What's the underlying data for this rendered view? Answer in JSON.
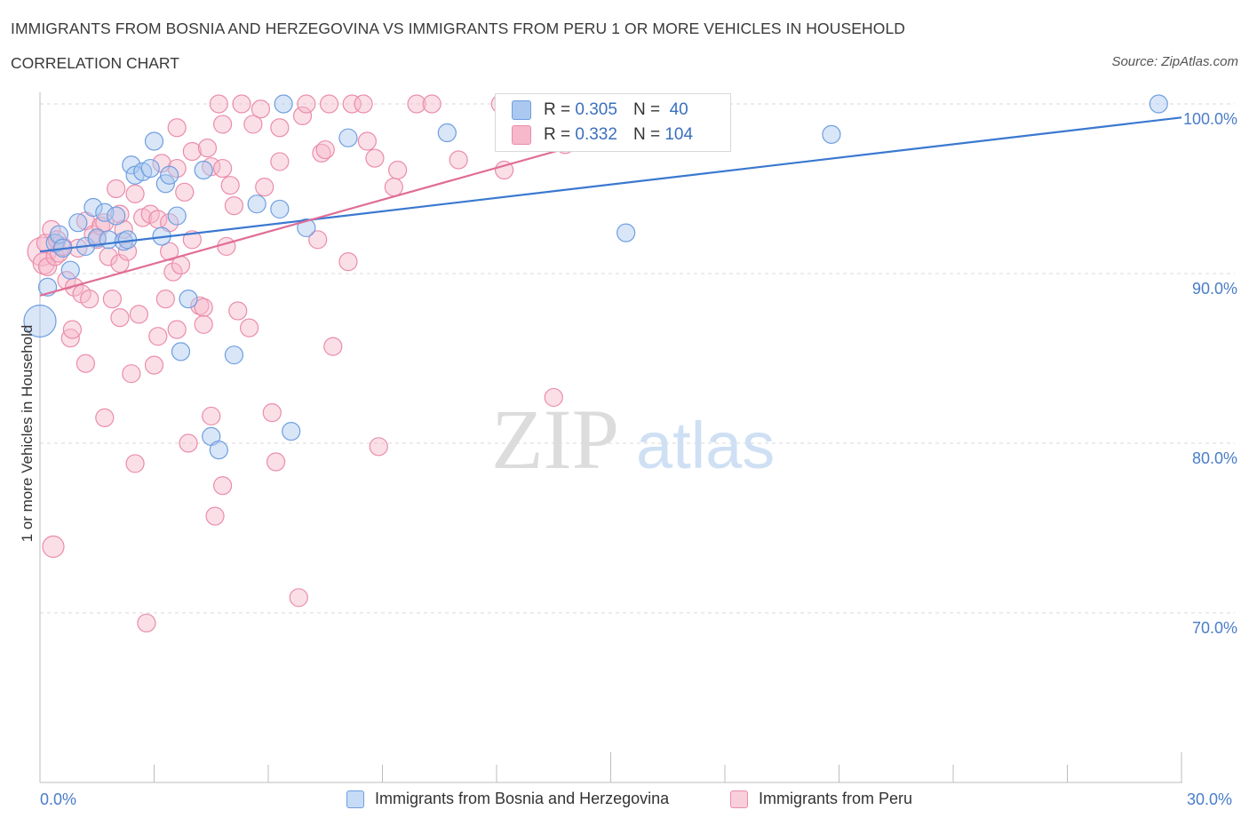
{
  "title": "IMMIGRANTS FROM BOSNIA AND HERZEGOVINA VS IMMIGRANTS FROM PERU 1 OR MORE VEHICLES IN HOUSEHOLD",
  "subtitle": "CORRELATION CHART",
  "source": "Source: ZipAtlas.com",
  "watermark": {
    "zip": "ZIP",
    "atlas": "atlas"
  },
  "colors": {
    "blue_fill": "#aac8f0",
    "blue_stroke": "#6d9ee0",
    "blue_line": "#3a78d0",
    "pink_fill": "#f6b8ca",
    "pink_stroke": "#ea8cab",
    "pink_line": "#e06d96",
    "axis_text": "#4a7dc9",
    "grid": "#d9d9d9"
  },
  "legend_top": [
    {
      "r_label": "R =",
      "r_value": "0.305",
      "n_label": "N =",
      "n_value": "40"
    },
    {
      "r_label": "R =",
      "r_value": "0.332",
      "n_label": "N =",
      "n_value": "104"
    }
  ],
  "legend_bottom": [
    {
      "label": "Immigrants from Bosnia and Herzegovina"
    },
    {
      "label": "Immigrants from Peru"
    }
  ],
  "chart_data": {
    "type": "scatter",
    "ylabel": "1 or more Vehicles in Household",
    "xlim": [
      0,
      30
    ],
    "ylim": [
      60,
      100
    ],
    "x_tick_labels": [
      "0.0%",
      "30.0%"
    ],
    "y_ticks": [
      {
        "value": 100,
        "label": "100.0%"
      },
      {
        "value": 90,
        "label": "90.0%"
      },
      {
        "value": 80,
        "label": "80.0%"
      },
      {
        "value": 70,
        "label": "70.0%"
      }
    ],
    "grid": true,
    "legend_position": "top-center",
    "series": [
      {
        "name": "Immigrants from Bosnia and Herzegovina",
        "color": "blue",
        "trend": {
          "x": [
            0,
            30
          ],
          "y": [
            91.3,
            99.2
          ]
        },
        "points": [
          [
            0.0,
            87.2,
            18
          ],
          [
            0.2,
            89.2,
            10
          ],
          [
            0.4,
            91.8,
            10
          ],
          [
            0.5,
            92.3,
            10
          ],
          [
            0.6,
            91.5,
            10
          ],
          [
            0.8,
            90.2,
            10
          ],
          [
            1.0,
            93.0,
            10
          ],
          [
            1.2,
            91.6,
            10
          ],
          [
            1.4,
            93.9,
            10
          ],
          [
            1.5,
            92.1,
            10
          ],
          [
            1.7,
            93.6,
            10
          ],
          [
            1.8,
            92.0,
            10
          ],
          [
            2.0,
            93.4,
            10
          ],
          [
            2.2,
            91.9,
            10
          ],
          [
            2.3,
            92.0,
            10
          ],
          [
            2.4,
            96.4,
            10
          ],
          [
            2.5,
            95.8,
            10
          ],
          [
            2.7,
            96.0,
            10
          ],
          [
            2.9,
            96.2,
            10
          ],
          [
            3.0,
            97.8,
            10
          ],
          [
            3.2,
            92.2,
            10
          ],
          [
            3.3,
            95.3,
            10
          ],
          [
            3.4,
            95.8,
            10
          ],
          [
            3.6,
            93.4,
            10
          ],
          [
            3.7,
            85.4,
            10
          ],
          [
            3.9,
            88.5,
            10
          ],
          [
            4.3,
            96.1,
            10
          ],
          [
            4.5,
            80.4,
            10
          ],
          [
            4.7,
            79.6,
            10
          ],
          [
            5.1,
            85.2,
            10
          ],
          [
            5.7,
            94.1,
            10
          ],
          [
            6.3,
            93.8,
            10
          ],
          [
            6.4,
            100.0,
            10
          ],
          [
            6.6,
            80.7,
            10
          ],
          [
            7.0,
            92.7,
            10
          ],
          [
            8.1,
            98.0,
            10
          ],
          [
            10.7,
            98.3,
            10
          ],
          [
            15.4,
            92.4,
            10
          ],
          [
            20.8,
            98.2,
            10
          ],
          [
            29.4,
            100.0,
            10
          ]
        ]
      },
      {
        "name": "Immigrants from Peru",
        "color": "pink",
        "trend": {
          "x": [
            0,
            18
          ],
          "y": [
            88.7,
            100.0
          ]
        },
        "points": [
          [
            0.05,
            91.3,
            16
          ],
          [
            0.1,
            90.6,
            12
          ],
          [
            0.15,
            91.8,
            10
          ],
          [
            0.2,
            90.4,
            10
          ],
          [
            0.3,
            92.6,
            10
          ],
          [
            0.35,
            73.9,
            12
          ],
          [
            0.4,
            91.0,
            10
          ],
          [
            0.45,
            92.0,
            10
          ],
          [
            0.5,
            91.2,
            10
          ],
          [
            0.6,
            91.6,
            10
          ],
          [
            0.7,
            89.6,
            10
          ],
          [
            0.8,
            86.2,
            10
          ],
          [
            0.85,
            86.7,
            10
          ],
          [
            0.9,
            89.2,
            10
          ],
          [
            1.0,
            91.5,
            10
          ],
          [
            1.1,
            88.8,
            10
          ],
          [
            1.2,
            93.1,
            10
          ],
          [
            1.2,
            84.7,
            10
          ],
          [
            1.3,
            88.5,
            10
          ],
          [
            1.4,
            92.3,
            10
          ],
          [
            1.5,
            92.0,
            10
          ],
          [
            1.6,
            92.8,
            10
          ],
          [
            1.7,
            93.0,
            10
          ],
          [
            1.7,
            81.5,
            10
          ],
          [
            1.8,
            91.0,
            10
          ],
          [
            1.9,
            88.5,
            10
          ],
          [
            2.0,
            95.0,
            10
          ],
          [
            2.1,
            93.5,
            10
          ],
          [
            2.1,
            90.6,
            10
          ],
          [
            2.1,
            87.4,
            10
          ],
          [
            2.2,
            92.6,
            10
          ],
          [
            2.3,
            91.3,
            10
          ],
          [
            2.4,
            84.1,
            10
          ],
          [
            2.5,
            94.7,
            10
          ],
          [
            2.5,
            78.8,
            10
          ],
          [
            2.6,
            87.6,
            10
          ],
          [
            2.7,
            93.3,
            10
          ],
          [
            2.8,
            69.4,
            10
          ],
          [
            2.9,
            93.5,
            10
          ],
          [
            3.0,
            84.6,
            10
          ],
          [
            3.1,
            93.2,
            10
          ],
          [
            3.1,
            86.3,
            10
          ],
          [
            3.2,
            96.5,
            10
          ],
          [
            3.3,
            88.5,
            10
          ],
          [
            3.4,
            93.0,
            10
          ],
          [
            3.4,
            91.3,
            10
          ],
          [
            3.5,
            90.1,
            10
          ],
          [
            3.6,
            86.7,
            10
          ],
          [
            3.6,
            98.6,
            10
          ],
          [
            3.6,
            96.2,
            10
          ],
          [
            3.7,
            90.5,
            10
          ],
          [
            3.8,
            94.8,
            10
          ],
          [
            3.9,
            80.0,
            10
          ],
          [
            4.0,
            92.0,
            10
          ],
          [
            4.0,
            97.2,
            10
          ],
          [
            4.2,
            88.1,
            10
          ],
          [
            4.3,
            88.0,
            10
          ],
          [
            4.3,
            87.0,
            10
          ],
          [
            4.4,
            97.4,
            10
          ],
          [
            4.5,
            96.3,
            10
          ],
          [
            4.5,
            81.6,
            10
          ],
          [
            4.6,
            75.7,
            10
          ],
          [
            4.7,
            100.0,
            10
          ],
          [
            4.8,
            98.8,
            10
          ],
          [
            4.8,
            96.2,
            10
          ],
          [
            4.8,
            77.5,
            10
          ],
          [
            4.9,
            91.6,
            10
          ],
          [
            5.0,
            95.2,
            10
          ],
          [
            5.1,
            94.0,
            10
          ],
          [
            5.2,
            87.8,
            10
          ],
          [
            5.3,
            100.0,
            10
          ],
          [
            5.5,
            86.8,
            10
          ],
          [
            5.6,
            98.8,
            10
          ],
          [
            5.8,
            99.7,
            10
          ],
          [
            5.9,
            95.1,
            10
          ],
          [
            6.1,
            81.8,
            10
          ],
          [
            6.2,
            78.9,
            10
          ],
          [
            6.3,
            98.6,
            10
          ],
          [
            6.3,
            96.6,
            10
          ],
          [
            6.8,
            70.9,
            10
          ],
          [
            6.9,
            99.3,
            10
          ],
          [
            7.0,
            100.0,
            10
          ],
          [
            7.3,
            92.0,
            10
          ],
          [
            7.4,
            97.1,
            10
          ],
          [
            7.5,
            97.3,
            10
          ],
          [
            7.6,
            100.0,
            10
          ],
          [
            7.7,
            85.7,
            10
          ],
          [
            8.1,
            90.7,
            10
          ],
          [
            8.2,
            100.0,
            10
          ],
          [
            8.5,
            100.0,
            10
          ],
          [
            8.6,
            97.8,
            10
          ],
          [
            8.8,
            96.8,
            10
          ],
          [
            8.9,
            79.8,
            10
          ],
          [
            9.3,
            95.1,
            10
          ],
          [
            9.4,
            96.1,
            10
          ],
          [
            9.9,
            100.0,
            10
          ],
          [
            10.3,
            100.0,
            10
          ],
          [
            11.0,
            96.7,
            10
          ],
          [
            12.1,
            100.0,
            10
          ],
          [
            12.2,
            96.1,
            10
          ],
          [
            13.5,
            82.7,
            10
          ],
          [
            13.8,
            97.6,
            10
          ],
          [
            15.9,
            100.0,
            10
          ],
          [
            16.8,
            100.0,
            10
          ]
        ]
      }
    ]
  }
}
